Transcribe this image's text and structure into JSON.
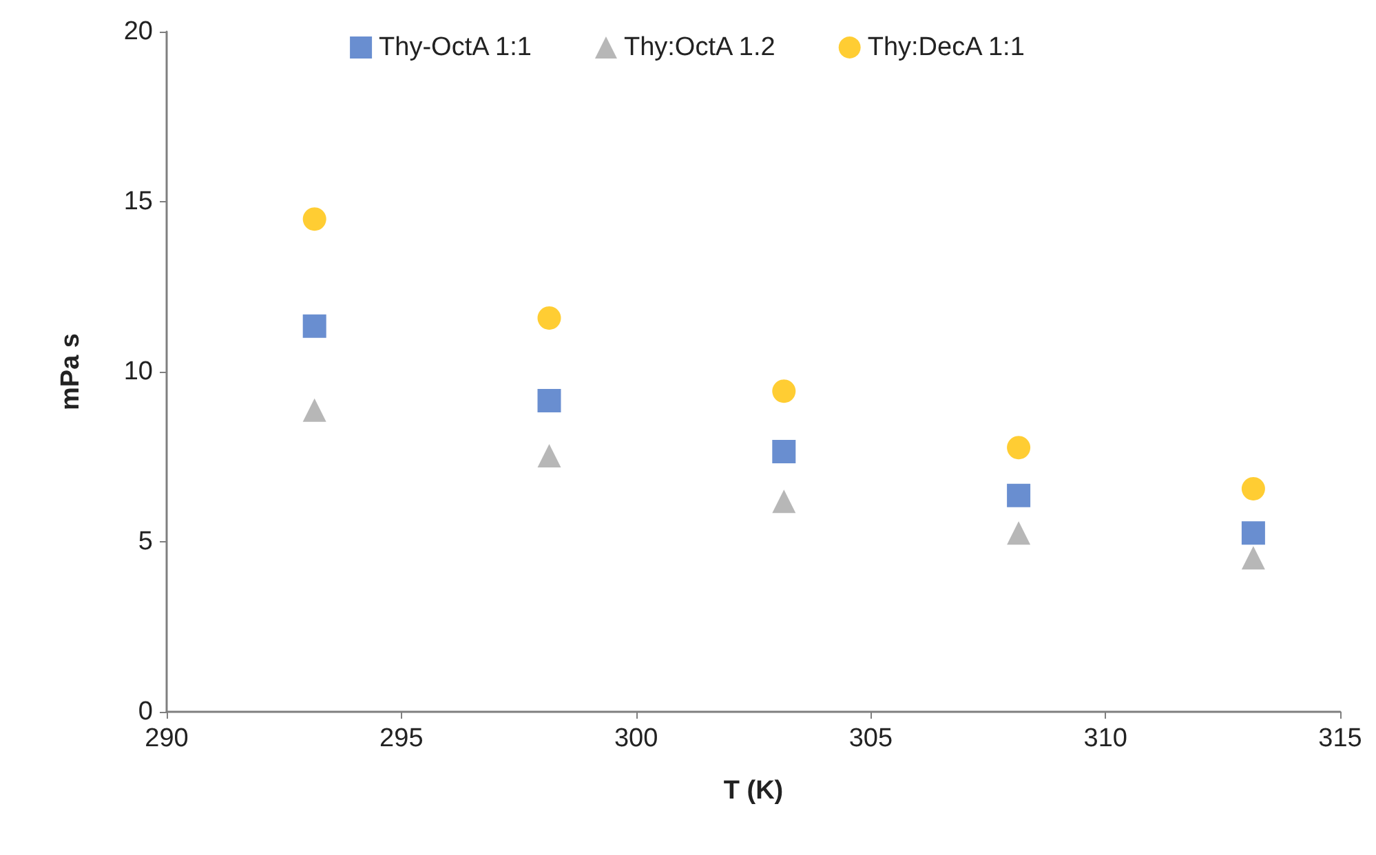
{
  "chart_data": {
    "type": "scatter",
    "xlabel": "T (K)",
    "ylabel": "mPa s",
    "x": [
      293.15,
      298.15,
      303.15,
      308.15,
      313.15
    ],
    "series": [
      {
        "name": "Thy-OctA 1:1",
        "color": "#4472c4",
        "marker": "square",
        "values": [
          11.34,
          9.15,
          7.65,
          6.36,
          5.26
        ]
      },
      {
        "name": "Thy:OctA 1.2",
        "color": "#a5a5a5",
        "marker": "triangle",
        "values": [
          8.87,
          7.53,
          6.19,
          5.26,
          4.53
        ]
      },
      {
        "name": "Thy:DecA 1:1",
        "color": "#ffc000",
        "marker": "circle",
        "values": [
          14.49,
          11.58,
          9.43,
          7.77,
          6.56
        ]
      }
    ],
    "xlim": [
      290,
      315
    ],
    "xticks": [
      290,
      295,
      300,
      305,
      310,
      315
    ],
    "ylim": [
      0,
      20
    ],
    "yticks": [
      0,
      5,
      10,
      15,
      20
    ],
    "grid": false,
    "legend": "top"
  }
}
